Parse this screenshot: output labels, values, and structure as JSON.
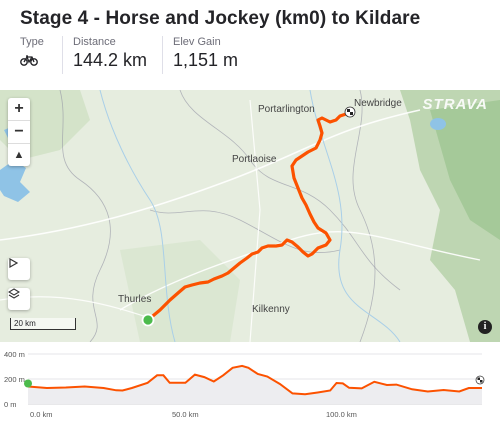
{
  "title": "Stage 4 - Horse and Jockey (km0) to Kildare",
  "stats": {
    "type_label": "Type",
    "type_icon": "bike-icon",
    "distance_label": "Distance",
    "distance_value": "144.2 km",
    "elev_label": "Elev Gain",
    "elev_value": "1,151 m"
  },
  "map": {
    "brand": "STRAVA",
    "towns": {
      "portarlington": "Portarlington",
      "newbridge": "Newbridge",
      "portlaoise": "Portlaoise",
      "thurles": "Thurles",
      "kilkenny": "Kilkenny"
    },
    "zoom_in": "+",
    "zoom_out": "−",
    "compass": "▲",
    "scale_label": "20 km",
    "route_color": "#fc5200",
    "start_color": "#4cbb4c"
  },
  "elevation": {
    "y_ticks": [
      "400 m",
      "200 m",
      "0 m"
    ],
    "x_ticks": [
      "0.0 km",
      "50.0 km",
      "100.0 km"
    ],
    "profile": [
      [
        0,
        140
      ],
      [
        6,
        128
      ],
      [
        12,
        132
      ],
      [
        18,
        140
      ],
      [
        24,
        128
      ],
      [
        28,
        110
      ],
      [
        30,
        108
      ],
      [
        33,
        128
      ],
      [
        38,
        170
      ],
      [
        41,
        230
      ],
      [
        43,
        230
      ],
      [
        45,
        170
      ],
      [
        50,
        170
      ],
      [
        53,
        235
      ],
      [
        56,
        215
      ],
      [
        59,
        180
      ],
      [
        62,
        230
      ],
      [
        65,
        290
      ],
      [
        68,
        305
      ],
      [
        70,
        290
      ],
      [
        73,
        240
      ],
      [
        76,
        220
      ],
      [
        80,
        160
      ],
      [
        84,
        85
      ],
      [
        88,
        78
      ],
      [
        92,
        92
      ],
      [
        96,
        108
      ],
      [
        98,
        168
      ],
      [
        100,
        165
      ],
      [
        102,
        130
      ],
      [
        106,
        125
      ],
      [
        110,
        178
      ],
      [
        114,
        152
      ],
      [
        117,
        155
      ],
      [
        122,
        118
      ],
      [
        127,
        100
      ],
      [
        132,
        112
      ],
      [
        137,
        100
      ],
      [
        140,
        128
      ],
      [
        144.2,
        128
      ]
    ]
  }
}
